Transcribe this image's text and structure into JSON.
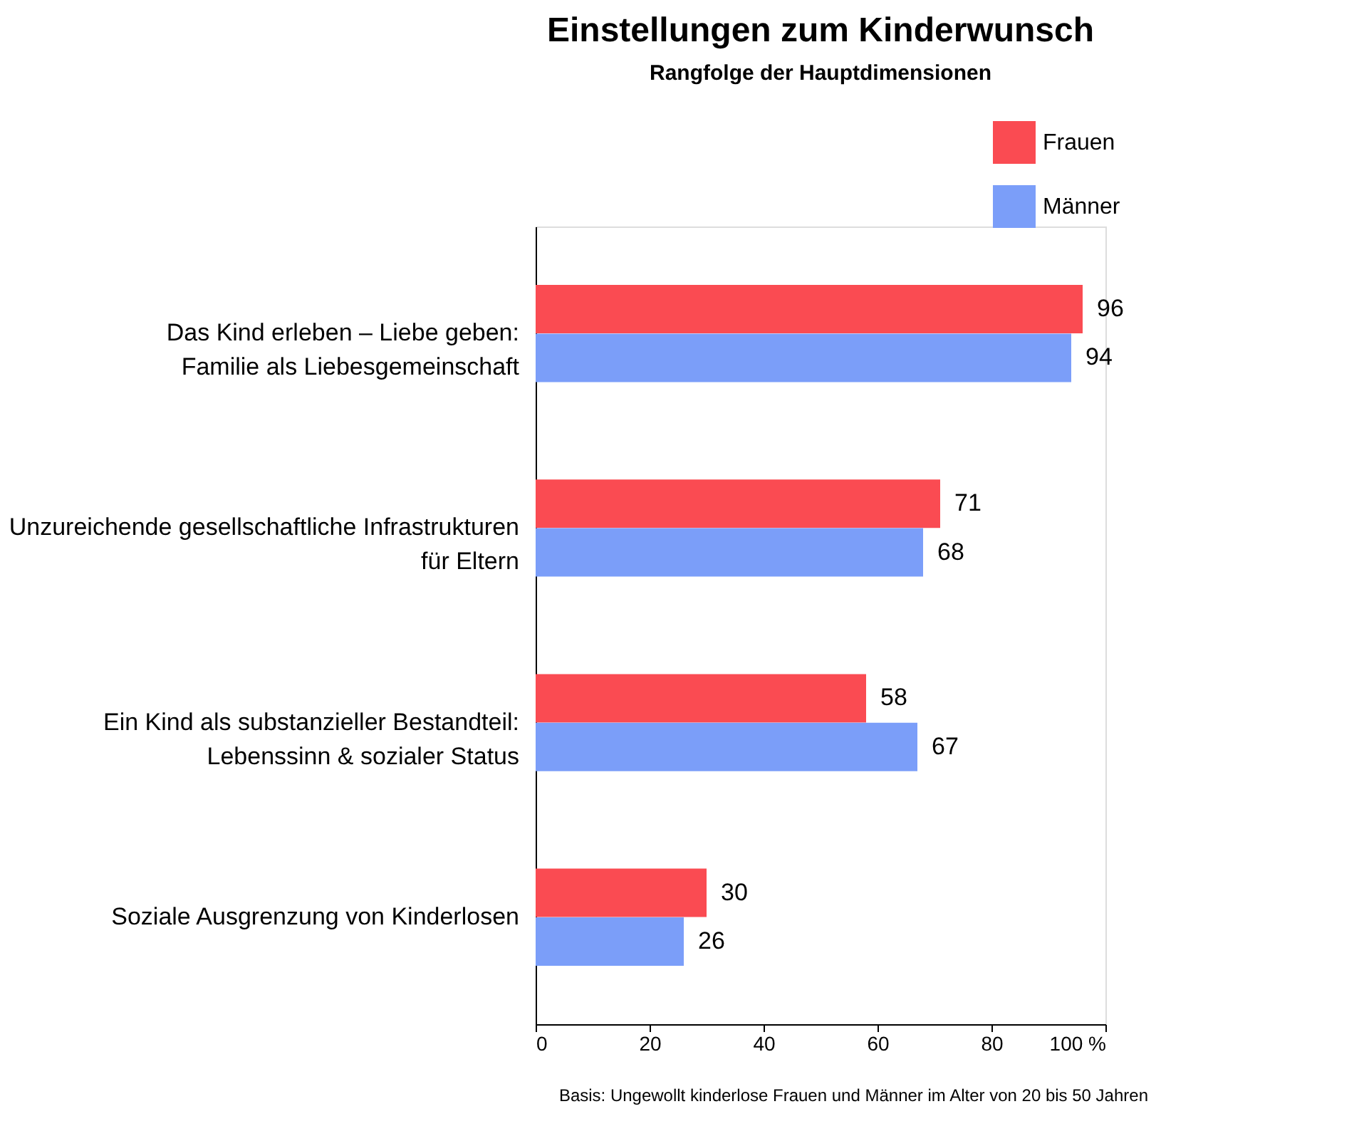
{
  "chart_data": {
    "type": "bar",
    "orientation": "horizontal",
    "title": "Einstellungen zum Kinderwunsch",
    "subtitle": "Rangfolge der Hauptdimensionen",
    "categories": [
      "Das Kind erleben – Liebe geben:\nFamilie als Liebesgemeinschaft",
      "Unzureichende gesellschaftliche Infrastrukturen\nfür Eltern",
      "Ein Kind als substanzieller Bestandteil:\nLebenssinn & sozialer Status",
      "Soziale Ausgrenzung von Kinderlosen"
    ],
    "series": [
      {
        "name": "Frauen",
        "color": "#fa4b52",
        "values": [
          96,
          71,
          58,
          30
        ]
      },
      {
        "name": "Männer",
        "color": "#7b9ef9",
        "values": [
          94,
          68,
          67,
          26
        ]
      }
    ],
    "xlim": [
      0,
      100
    ],
    "xticks": [
      0,
      20,
      40,
      60,
      {
        "value": 80,
        "label": "80"
      },
      {
        "value": 100,
        "label": "100 %"
      }
    ],
    "data_labels": true,
    "legend": "top right",
    "grid": false,
    "annotations": [
      "Basis: Ungewollt kinderlose Frauen und Männer  im Alter von 20 bis 50 Jahren"
    ]
  }
}
